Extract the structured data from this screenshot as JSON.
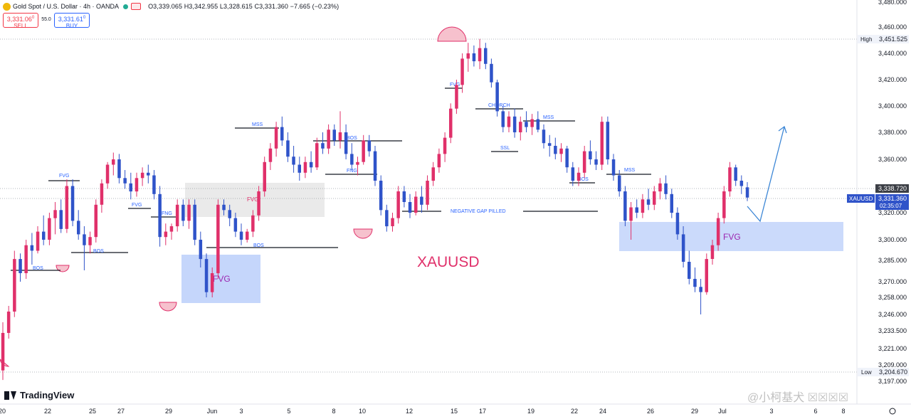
{
  "header": {
    "symbol": "Gold Spot / U.S. Dollar · 4h · OANDA",
    "ohlc": "O3,339.065 H3,342.955 L3,328.615 C3,331.360 −7.665 (−0.23%)",
    "sell_price": "3,331.06",
    "sell_sup": "0",
    "sell_label": "SELL",
    "spread": "55.0",
    "buy_price": "3,331.61",
    "buy_sup": "0",
    "buy_label": "BUY"
  },
  "branding": {
    "logo": "TradingView",
    "watermark": "@小柯基犬 ☒☒☒☒"
  },
  "colors": {
    "bull": "#e0306a",
    "bear": "#2f53c9",
    "fvg_blue": "#c5d6fb",
    "grey_zone": "#e6e6e6",
    "text_blue": "#2962ff",
    "title": "#e0306a",
    "arrow": "#3d87d6",
    "circle": "#f6c1cd"
  },
  "chart_data": {
    "type": "candlestick",
    "title": "XAUUSD",
    "y_ticks": [
      "3,480.000",
      "3,460.000",
      "3,440.000",
      "3,420.000",
      "3,400.000",
      "3,380.000",
      "3,360.000",
      "3,320.000",
      "3,300.000",
      "3,285.000",
      "3,270.000",
      "3,258.000",
      "3,246.000",
      "3,233.500",
      "3,221.000",
      "3,209.000",
      "3,197.000"
    ],
    "x_ticks": [
      "20",
      "22",
      "25",
      "27",
      "29",
      "Jun",
      "3",
      "5",
      "8",
      "10",
      "12",
      "15",
      "17",
      "19",
      "22",
      "24",
      "26",
      "29",
      "Jul",
      "3",
      "6",
      "8"
    ],
    "price_labels": {
      "high_label": "High",
      "high_value": "3,451.525",
      "low_label": "Low",
      "low_value": "3,204.670",
      "level_value": "3,338.720",
      "symbol_tag": "XAUUSD",
      "current_value": "3,331.360",
      "countdown": "02:35:07"
    },
    "annotations": {
      "bos": "BOS",
      "fvg": "FVG",
      "fng": "FNG",
      "mss": "MSS",
      "choch": "CHORCH",
      "ssl": "SSL",
      "negative_gap": "NEGATIVE GAP PILLED",
      "fvg_big": "FVG"
    },
    "candles_ohlc": [
      [
        3205,
        3240,
        3198,
        3232
      ],
      [
        3232,
        3252,
        3228,
        3248
      ],
      [
        3248,
        3292,
        3244,
        3286
      ],
      [
        3286,
        3290,
        3270,
        3276
      ],
      [
        3276,
        3300,
        3272,
        3296
      ],
      [
        3296,
        3305,
        3282,
        3292
      ],
      [
        3292,
        3310,
        3290,
        3306
      ],
      [
        3306,
        3318,
        3296,
        3300
      ],
      [
        3300,
        3320,
        3296,
        3316
      ],
      [
        3316,
        3328,
        3304,
        3322
      ],
      [
        3322,
        3330,
        3305,
        3308
      ],
      [
        3308,
        3345,
        3305,
        3340
      ],
      [
        3340,
        3345,
        3310,
        3314
      ],
      [
        3314,
        3322,
        3300,
        3304
      ],
      [
        3304,
        3310,
        3278,
        3296
      ],
      [
        3296,
        3306,
        3290,
        3302
      ],
      [
        3302,
        3330,
        3298,
        3326
      ],
      [
        3326,
        3345,
        3320,
        3342
      ],
      [
        3342,
        3358,
        3338,
        3356
      ],
      [
        3356,
        3365,
        3348,
        3360
      ],
      [
        3360,
        3364,
        3342,
        3346
      ],
      [
        3346,
        3352,
        3338,
        3342
      ],
      [
        3342,
        3350,
        3330,
        3336
      ],
      [
        3336,
        3350,
        3332,
        3346
      ],
      [
        3346,
        3354,
        3340,
        3350
      ],
      [
        3350,
        3356,
        3342,
        3348
      ],
      [
        3348,
        3352,
        3330,
        3334
      ],
      [
        3334,
        3340,
        3295,
        3302
      ],
      [
        3302,
        3312,
        3296,
        3306
      ],
      [
        3306,
        3312,
        3300,
        3310
      ],
      [
        3310,
        3330,
        3306,
        3326
      ],
      [
        3326,
        3330,
        3310,
        3314
      ],
      [
        3314,
        3330,
        3308,
        3326
      ],
      [
        3326,
        3330,
        3296,
        3300
      ],
      [
        3300,
        3306,
        3280,
        3286
      ],
      [
        3286,
        3290,
        3258,
        3262
      ],
      [
        3262,
        3280,
        3258,
        3276
      ],
      [
        3276,
        3330,
        3272,
        3326
      ],
      [
        3326,
        3330,
        3318,
        3322
      ],
      [
        3322,
        3326,
        3310,
        3316
      ],
      [
        3316,
        3320,
        3302,
        3306
      ],
      [
        3306,
        3312,
        3296,
        3300
      ],
      [
        3300,
        3308,
        3298,
        3306
      ],
      [
        3306,
        3322,
        3302,
        3318
      ],
      [
        3318,
        3340,
        3314,
        3336
      ],
      [
        3336,
        3362,
        3332,
        3358
      ],
      [
        3358,
        3372,
        3352,
        3368
      ],
      [
        3368,
        3388,
        3362,
        3384
      ],
      [
        3384,
        3392,
        3370,
        3374
      ],
      [
        3374,
        3380,
        3358,
        3362
      ],
      [
        3362,
        3370,
        3350,
        3356
      ],
      [
        3356,
        3362,
        3344,
        3350
      ],
      [
        3350,
        3362,
        3346,
        3358
      ],
      [
        3358,
        3366,
        3350,
        3354
      ],
      [
        3354,
        3376,
        3352,
        3372
      ],
      [
        3372,
        3380,
        3364,
        3368
      ],
      [
        3368,
        3386,
        3364,
        3382
      ],
      [
        3382,
        3386,
        3370,
        3374
      ],
      [
        3374,
        3396,
        3368,
        3380
      ],
      [
        3380,
        3386,
        3360,
        3364
      ],
      [
        3364,
        3372,
        3352,
        3356
      ],
      [
        3356,
        3362,
        3348,
        3358
      ],
      [
        3358,
        3378,
        3356,
        3374
      ],
      [
        3374,
        3378,
        3362,
        3366
      ],
      [
        3366,
        3370,
        3340,
        3344
      ],
      [
        3344,
        3348,
        3318,
        3322
      ],
      [
        3322,
        3326,
        3306,
        3310
      ],
      [
        3310,
        3320,
        3306,
        3316
      ],
      [
        3316,
        3340,
        3312,
        3336
      ],
      [
        3336,
        3340,
        3324,
        3328
      ],
      [
        3328,
        3334,
        3316,
        3320
      ],
      [
        3320,
        3336,
        3318,
        3332
      ],
      [
        3332,
        3340,
        3320,
        3326
      ],
      [
        3326,
        3348,
        3322,
        3344
      ],
      [
        3344,
        3358,
        3340,
        3354
      ],
      [
        3354,
        3368,
        3350,
        3364
      ],
      [
        3364,
        3380,
        3358,
        3376
      ],
      [
        3376,
        3402,
        3372,
        3398
      ],
      [
        3398,
        3420,
        3394,
        3416
      ],
      [
        3416,
        3440,
        3410,
        3436
      ],
      [
        3436,
        3448,
        3426,
        3440
      ],
      [
        3440,
        3446,
        3430,
        3434
      ],
      [
        3434,
        3451,
        3428,
        3444
      ],
      [
        3444,
        3448,
        3428,
        3432
      ],
      [
        3432,
        3436,
        3414,
        3418
      ],
      [
        3418,
        3420,
        3392,
        3396
      ],
      [
        3396,
        3400,
        3380,
        3384
      ],
      [
        3384,
        3396,
        3380,
        3392
      ],
      [
        3392,
        3398,
        3376,
        3380
      ],
      [
        3380,
        3392,
        3374,
        3388
      ],
      [
        3388,
        3396,
        3380,
        3384
      ],
      [
        3384,
        3394,
        3378,
        3390
      ],
      [
        3390,
        3396,
        3380,
        3382
      ],
      [
        3382,
        3386,
        3368,
        3372
      ],
      [
        3372,
        3378,
        3362,
        3370
      ],
      [
        3370,
        3376,
        3360,
        3364
      ],
      [
        3364,
        3372,
        3358,
        3368
      ],
      [
        3368,
        3370,
        3350,
        3354
      ],
      [
        3354,
        3358,
        3340,
        3344
      ],
      [
        3344,
        3354,
        3340,
        3350
      ],
      [
        3350,
        3370,
        3346,
        3366
      ],
      [
        3366,
        3374,
        3356,
        3360
      ],
      [
        3360,
        3366,
        3352,
        3356
      ],
      [
        3356,
        3392,
        3352,
        3388
      ],
      [
        3388,
        3392,
        3356,
        3360
      ],
      [
        3360,
        3364,
        3344,
        3348
      ],
      [
        3348,
        3352,
        3332,
        3336
      ],
      [
        3336,
        3340,
        3310,
        3314
      ],
      [
        3314,
        3328,
        3300,
        3324
      ],
      [
        3324,
        3330,
        3316,
        3320
      ],
      [
        3320,
        3334,
        3316,
        3330
      ],
      [
        3330,
        3338,
        3322,
        3326
      ],
      [
        3326,
        3340,
        3322,
        3336
      ],
      [
        3336,
        3346,
        3330,
        3342
      ],
      [
        3342,
        3348,
        3330,
        3334
      ],
      [
        3334,
        3338,
        3316,
        3320
      ],
      [
        3320,
        3324,
        3300,
        3304
      ],
      [
        3304,
        3310,
        3280,
        3284
      ],
      [
        3284,
        3292,
        3268,
        3272
      ],
      [
        3272,
        3280,
        3262,
        3266
      ],
      [
        3266,
        3272,
        3246,
        3262
      ],
      [
        3262,
        3290,
        3260,
        3286
      ],
      [
        3286,
        3300,
        3282,
        3296
      ],
      [
        3296,
        3320,
        3292,
        3316
      ],
      [
        3316,
        3340,
        3312,
        3336
      ],
      [
        3336,
        3358,
        3332,
        3354
      ],
      [
        3354,
        3356,
        3340,
        3344
      ],
      [
        3344,
        3348,
        3334,
        3340
      ],
      [
        3339.065,
        3342.955,
        3328.615,
        3331.36
      ]
    ]
  }
}
